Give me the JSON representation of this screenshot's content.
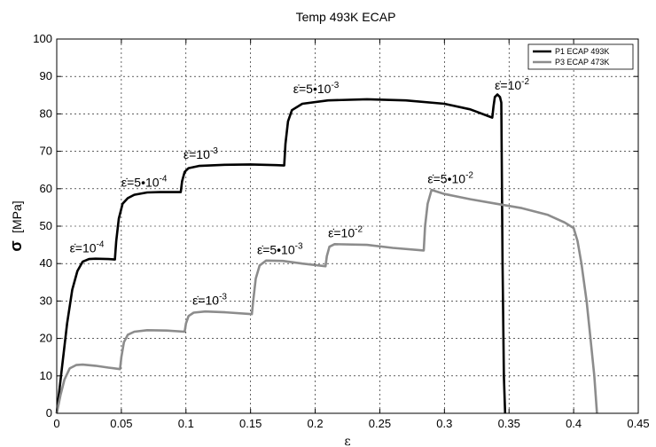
{
  "chart_data": {
    "type": "line",
    "title": "Temp 493K ECAP",
    "xlabel": "ε",
    "ylabel_symbol": "σ",
    "ylabel_unit": "[MPa]",
    "xlim": [
      0,
      0.45
    ],
    "ylim": [
      0,
      100
    ],
    "xticks": [
      "0",
      "0.05",
      "0.1",
      "0.15",
      "0.2",
      "0.25",
      "0.3",
      "0.35",
      "0.4",
      "0.45"
    ],
    "yticks": [
      "0",
      "10",
      "20",
      "30",
      "40",
      "50",
      "60",
      "70",
      "80",
      "90",
      "100"
    ],
    "grid": true,
    "legend_position": "top-right",
    "series": [
      {
        "name": "P1 ECAP 493K",
        "color": "#000000",
        "points": [
          [
            0,
            0
          ],
          [
            0.004,
            12
          ],
          [
            0.008,
            24
          ],
          [
            0.012,
            33
          ],
          [
            0.016,
            38
          ],
          [
            0.02,
            40.5
          ],
          [
            0.025,
            41.2
          ],
          [
            0.03,
            41.3
          ],
          [
            0.04,
            41.2
          ],
          [
            0.045,
            41.1
          ],
          [
            0.046,
            46
          ],
          [
            0.048,
            52
          ],
          [
            0.051,
            56
          ],
          [
            0.055,
            57.5
          ],
          [
            0.06,
            58.4
          ],
          [
            0.07,
            59
          ],
          [
            0.08,
            59.1
          ],
          [
            0.09,
            59.1
          ],
          [
            0.096,
            59.1
          ],
          [
            0.097,
            62
          ],
          [
            0.099,
            64.5
          ],
          [
            0.102,
            65.5
          ],
          [
            0.11,
            66.1
          ],
          [
            0.13,
            66.4
          ],
          [
            0.15,
            66.5
          ],
          [
            0.17,
            66.3
          ],
          [
            0.176,
            66.2
          ],
          [
            0.177,
            72
          ],
          [
            0.179,
            78
          ],
          [
            0.182,
            81
          ],
          [
            0.19,
            82.7
          ],
          [
            0.21,
            83.6
          ],
          [
            0.24,
            83.9
          ],
          [
            0.27,
            83.6
          ],
          [
            0.3,
            82.7
          ],
          [
            0.32,
            81.2
          ],
          [
            0.337,
            79
          ],
          [
            0.338,
            82
          ],
          [
            0.339,
            84.5
          ],
          [
            0.341,
            85.2
          ],
          [
            0.343,
            84.5
          ],
          [
            0.344,
            83
          ],
          [
            0.345,
            40
          ],
          [
            0.346,
            10
          ],
          [
            0.347,
            0
          ]
        ]
      },
      {
        "name": "P3 ECAP 473K",
        "color": "#8c8c8c",
        "points": [
          [
            0,
            0
          ],
          [
            0.003,
            5
          ],
          [
            0.006,
            9
          ],
          [
            0.01,
            12
          ],
          [
            0.015,
            12.9
          ],
          [
            0.02,
            13
          ],
          [
            0.03,
            12.7
          ],
          [
            0.04,
            12.2
          ],
          [
            0.049,
            11.8
          ],
          [
            0.05,
            15
          ],
          [
            0.052,
            19
          ],
          [
            0.055,
            21
          ],
          [
            0.06,
            21.8
          ],
          [
            0.07,
            22.2
          ],
          [
            0.085,
            22.1
          ],
          [
            0.099,
            21.8
          ],
          [
            0.1,
            24
          ],
          [
            0.102,
            26
          ],
          [
            0.106,
            26.9
          ],
          [
            0.115,
            27.2
          ],
          [
            0.13,
            27
          ],
          [
            0.151,
            26.5
          ],
          [
            0.152,
            30
          ],
          [
            0.154,
            36
          ],
          [
            0.157,
            39.5
          ],
          [
            0.162,
            40.8
          ],
          [
            0.175,
            40.7
          ],
          [
            0.19,
            40
          ],
          [
            0.208,
            39.3
          ],
          [
            0.209,
            42
          ],
          [
            0.211,
            44.5
          ],
          [
            0.215,
            45.2
          ],
          [
            0.24,
            45
          ],
          [
            0.26,
            44.2
          ],
          [
            0.284,
            43.5
          ],
          [
            0.285,
            50
          ],
          [
            0.287,
            56
          ],
          [
            0.29,
            59.7
          ],
          [
            0.3,
            58.6
          ],
          [
            0.32,
            57.2
          ],
          [
            0.34,
            56
          ],
          [
            0.36,
            54.8
          ],
          [
            0.38,
            53
          ],
          [
            0.393,
            51
          ],
          [
            0.4,
            49.5
          ],
          [
            0.403,
            46
          ],
          [
            0.406,
            40
          ],
          [
            0.41,
            30
          ],
          [
            0.413,
            20
          ],
          [
            0.416,
            10
          ],
          [
            0.418,
            0
          ]
        ]
      }
    ],
    "annotations": [
      {
        "base": "ε̇=10",
        "exp": "-4",
        "x": 0.01,
        "y": 43
      },
      {
        "base": "ε̇=5•10",
        "exp": "-4",
        "x": 0.05,
        "y": 60.5
      },
      {
        "base": "ε̇=10",
        "exp": "-3",
        "x": 0.098,
        "y": 68
      },
      {
        "base": "ε̇=5•10",
        "exp": "-3",
        "x": 0.183,
        "y": 85.5
      },
      {
        "base": "ε̇=10",
        "exp": "-2",
        "x": 0.339,
        "y": 86.5
      },
      {
        "base": "ε̇=10",
        "exp": "-3",
        "x": 0.105,
        "y": 29
      },
      {
        "base": "ε̇=5•10",
        "exp": "-3",
        "x": 0.155,
        "y": 42.5
      },
      {
        "base": "ε̇=10",
        "exp": "-2",
        "x": 0.21,
        "y": 47
      },
      {
        "base": "ε̇=5•10",
        "exp": "-2",
        "x": 0.287,
        "y": 61.5
      }
    ]
  }
}
